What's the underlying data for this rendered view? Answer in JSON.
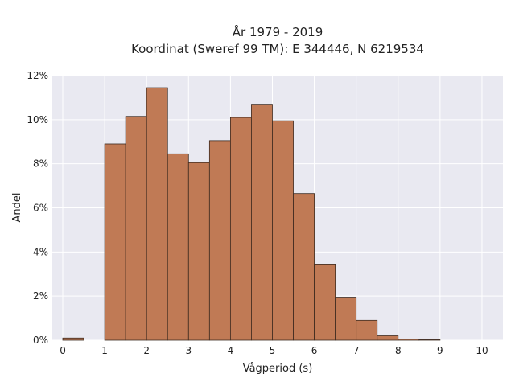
{
  "chart_data": {
    "type": "bar",
    "title_lines": [
      "År 1979 - 2019",
      "Koordinat (Sweref 99 TM): E 344446, N 6219534"
    ],
    "xlabel": "Vågperiod (s)",
    "ylabel": "Andel",
    "bin_width": 0.5,
    "bin_starts": [
      0,
      0.5,
      1,
      1.5,
      2,
      2.5,
      3,
      3.5,
      4,
      4.5,
      5,
      5.5,
      6,
      6.5,
      7,
      7.5,
      8,
      8.5,
      9,
      9.5
    ],
    "values": [
      0.1,
      0,
      8.9,
      10.15,
      11.45,
      8.45,
      8.05,
      9.05,
      10.1,
      10.7,
      9.95,
      6.65,
      3.45,
      1.95,
      0.9,
      0.2,
      0.05,
      0.02,
      0,
      0
    ],
    "xlim": [
      -0.25,
      10.5
    ],
    "ylim": [
      0,
      12
    ],
    "x_ticks": [
      "0",
      "1",
      "2",
      "3",
      "4",
      "5",
      "6",
      "7",
      "8",
      "9",
      "10"
    ],
    "y_ticks": [
      "0%",
      "2%",
      "4%",
      "6%",
      "8%",
      "10%",
      "12%"
    ],
    "grid": true,
    "bar_color": "#c07a55",
    "background_color": "#e9e9f1"
  }
}
